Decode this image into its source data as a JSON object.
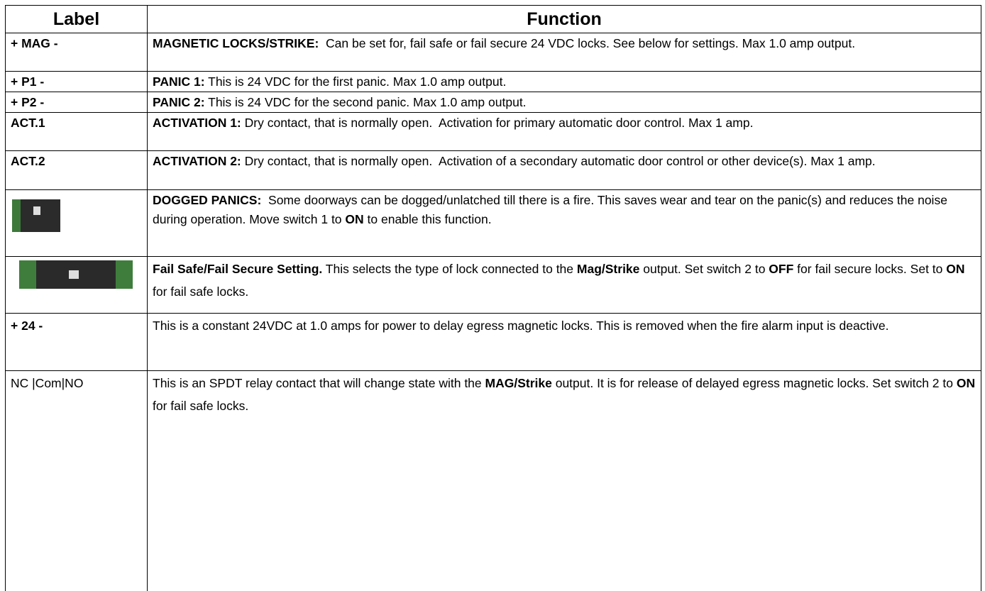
{
  "table": {
    "header": [
      "Label",
      "Function"
    ],
    "rows": [
      {
        "label": "+ MAG -",
        "function": [
          "MAGNETIC LOCKS/STRIKE:",
          "  Can be set for, fail safe or fail secure 24 VDC locks. See below for settings. Max 1.0 amp output."
        ]
      },
      {
        "label": "+ P1 -",
        "function": [
          "PANIC 1:",
          " This is 24 VDC for the first panic. Max 1.0 amp output."
        ]
      },
      {
        "label": "+ P2 -",
        "function": [
          "PANIC 2:",
          " This is 24 VDC for the second panic. Max 1.0 amp output."
        ]
      },
      {
        "label": "ACT.1",
        "function": [
          "ACTIVATION 1:",
          " Dry contact, that is normally open.  Activation for primary automatic door control. Max 1 amp."
        ]
      },
      {
        "label": "ACT.2",
        "function": [
          "ACTIVATION 2:",
          " Dry contact, that is normally open.  Activation of a secondary automatic door control or other device(s). Max 1 amp."
        ]
      },
      {
        "function": [
          "DOGGED PANICS:",
          "  Some doorways can be dogged/unlatched till there is a fire. This saves wear and tear on the panic(s) and reduces the noise during operation. Move switch 1 to ",
          "ON",
          " to enable this function."
        ]
      },
      {
        "function": [
          "Fail Safe/Fail Secure Setting.",
          " This selects the type of lock connected to the ",
          "Mag/Strike",
          " output. Set switch 2 to ",
          "OFF",
          " for fail secure locks. Set to ",
          "ON",
          " for fail safe locks."
        ]
      },
      {
        "label": "+ 24 -",
        "function": [
          "This is a constant 24VDC at 1.0 amps for power to delay egress magnetic locks. This is removed when the fire alarm input is deactive."
        ]
      },
      {
        "label": "NC |Com|NO",
        "function": [
          "This is an SPDT relay contact that will change state with the ",
          "MAG/Strike",
          " output. It is for release of delayed egress magnetic locks. Set switch 2 to ",
          "ON",
          " for fail safe locks."
        ]
      }
    ]
  }
}
